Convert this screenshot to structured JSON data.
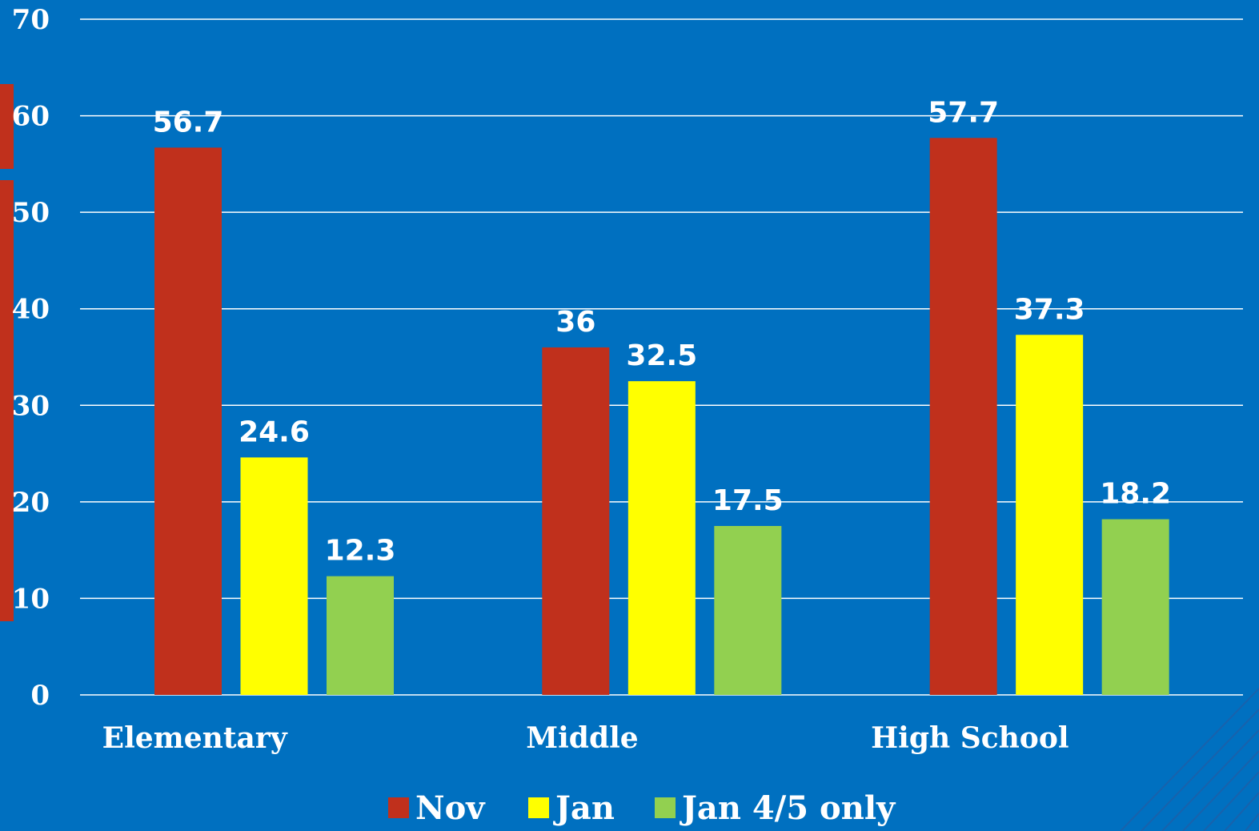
{
  "chart_data": {
    "type": "bar",
    "categories": [
      "Elementary",
      "Middle",
      "High School"
    ],
    "series": [
      {
        "name": "Nov",
        "values": [
          56.7,
          36,
          57.7
        ],
        "color": "#C0301C"
      },
      {
        "name": "Jan",
        "values": [
          24.6,
          32.5,
          37.3
        ],
        "color": "#FFFF00"
      },
      {
        "name": "Jan 4/5 only",
        "values": [
          12.3,
          17.5,
          18.2
        ],
        "color": "#92D050"
      }
    ],
    "ylim": [
      0,
      70
    ],
    "yticks": [
      0,
      10,
      20,
      30,
      40,
      50,
      60,
      70
    ],
    "grid": true,
    "legend_position": "bottom",
    "data_labels": true,
    "background_color": "#0070C0",
    "gridline_color": "#FFFFFF",
    "accent_strip_color": "#C0301C"
  }
}
